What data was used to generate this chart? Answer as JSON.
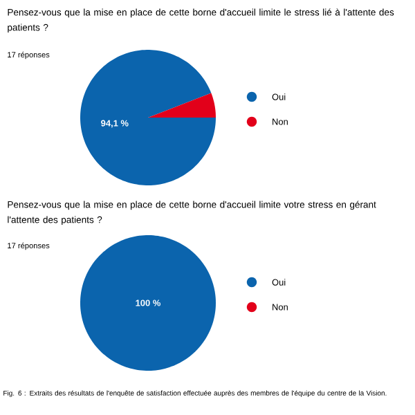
{
  "chart_data": [
    {
      "type": "pie",
      "title": "Pensez-vous que la mise en place de cette borne d'accueil limite le stress lié à l'attente des patients ?",
      "subtitle": "17 réponses",
      "categories": [
        "Oui",
        "Non"
      ],
      "values": [
        94.1,
        5.9
      ],
      "colors": [
        "#0b64ad",
        "#e2001a"
      ],
      "value_labels": [
        "94,1 %",
        null
      ],
      "legend": "right"
    },
    {
      "type": "pie",
      "title": "Pensez-vous que la mise en place de cette borne d'accueil limite votre stress en gérant l'attente des patients ?",
      "subtitle": "17 réponses",
      "categories": [
        "Oui",
        "Non"
      ],
      "values": [
        100,
        0
      ],
      "colors": [
        "#0b64ad",
        "#e2001a"
      ],
      "value_labels": [
        "100 %",
        null
      ],
      "legend": "right",
      "annotations": [
        "Fig. 6 : Extraits des résultats de l'enquête de satisfaction effectuée auprès des membres de l'équipe du centre de la Vision."
      ]
    }
  ]
}
